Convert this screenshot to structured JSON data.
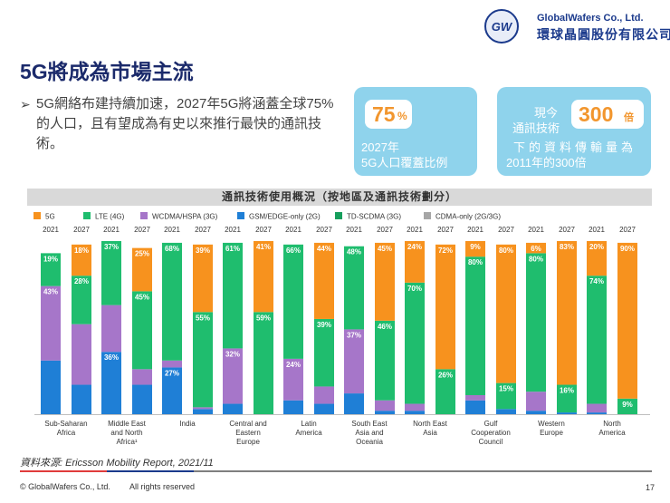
{
  "header": {
    "logo_text": "GW",
    "company_en": "GlobalWafers Co., Ltd.",
    "company_zh": "環球晶圓股份有限公司"
  },
  "title": "5G將成為市場主流",
  "bullet": {
    "marker": "➢",
    "text": "5G網絡布建持續加速，2027年5G將涵蓋全球75%的人口，且有望成為有史以來推行最快的通訊技術。"
  },
  "card1": {
    "value": "75",
    "unit": "%",
    "caption_line1": "2027年",
    "caption_line2": "5G人口覆蓋比例"
  },
  "card2": {
    "label_line1": "現今",
    "label_line2": "通訊技術",
    "value": "300",
    "unit": "倍",
    "caption_line1": "下的資料傳輸量為",
    "caption_line2": "2011年的300倍"
  },
  "chart_header": "通訊技術使用概況（按地區及通訊技術劃分）",
  "chart_data": {
    "type": "bar",
    "stacked": true,
    "ylim": [
      0,
      100
    ],
    "year_labels": [
      "2021",
      "2027"
    ],
    "legend": [
      {
        "name": "5G",
        "color": "#f7921e"
      },
      {
        "name": "LTE (4G)",
        "color": "#1fbd6e"
      },
      {
        "name": "WCDMA/HSPA (3G)",
        "color": "#a676c9"
      },
      {
        "name": "GSM/EDGE-only (2G)",
        "color": "#1f7fd6"
      },
      {
        "name": "TD-SCDMA (3G)",
        "color": "#169e5c"
      },
      {
        "name": "CDMA-only (2G/3G)",
        "color": "#a6a6a6"
      }
    ],
    "regions": [
      {
        "name": "Sub-Saharan Africa",
        "label_lines": [
          "Sub-Saharan",
          "Africa"
        ],
        "bars": [
          {
            "year": "2021",
            "segments": [
              {
                "tech": "GSM/EDGE-only (2G)",
                "value": 31,
                "label": ""
              },
              {
                "tech": "WCDMA/HSPA (3G)",
                "value": 43,
                "label": "43%"
              },
              {
                "tech": "LTE (4G)",
                "value": 19,
                "label": "19%"
              },
              {
                "tech": "5G",
                "value": 0,
                "label": ""
              }
            ]
          },
          {
            "year": "2027",
            "segments": [
              {
                "tech": "GSM/EDGE-only (2G)",
                "value": 17,
                "label": ""
              },
              {
                "tech": "WCDMA/HSPA (3G)",
                "value": 35,
                "label": ""
              },
              {
                "tech": "LTE (4G)",
                "value": 28,
                "label": "28%"
              },
              {
                "tech": "5G",
                "value": 18,
                "label": "18%"
              }
            ]
          }
        ]
      },
      {
        "name": "Middle East and North Africa",
        "label_lines": [
          "Middle East",
          "and North",
          "Africa¹"
        ],
        "bars": [
          {
            "year": "2021",
            "segments": [
              {
                "tech": "GSM/EDGE-only (2G)",
                "value": 36,
                "label": "36%"
              },
              {
                "tech": "WCDMA/HSPA (3G)",
                "value": 27,
                "label": ""
              },
              {
                "tech": "LTE (4G)",
                "value": 37,
                "label": "37%"
              },
              {
                "tech": "5G",
                "value": 0,
                "label": ""
              }
            ]
          },
          {
            "year": "2027",
            "segments": [
              {
                "tech": "GSM/EDGE-only (2G)",
                "value": 17,
                "label": ""
              },
              {
                "tech": "WCDMA/HSPA (3G)",
                "value": 9,
                "label": ""
              },
              {
                "tech": "LTE (4G)",
                "value": 45,
                "label": "45%"
              },
              {
                "tech": "5G",
                "value": 25,
                "label": "25%"
              }
            ]
          }
        ]
      },
      {
        "name": "India",
        "label_lines": [
          "India"
        ],
        "bars": [
          {
            "year": "2021",
            "segments": [
              {
                "tech": "GSM/EDGE-only (2G)",
                "value": 27,
                "label": "27%"
              },
              {
                "tech": "WCDMA/HSPA (3G)",
                "value": 4,
                "label": ""
              },
              {
                "tech": "LTE (4G)",
                "value": 68,
                "label": "68%"
              },
              {
                "tech": "5G",
                "value": 0,
                "label": ""
              }
            ]
          },
          {
            "year": "2027",
            "segments": [
              {
                "tech": "GSM/EDGE-only (2G)",
                "value": 3,
                "label": ""
              },
              {
                "tech": "WCDMA/HSPA (3G)",
                "value": 1,
                "label": ""
              },
              {
                "tech": "LTE (4G)",
                "value": 55,
                "label": "55%"
              },
              {
                "tech": "5G",
                "value": 39,
                "label": "39%"
              }
            ]
          }
        ]
      },
      {
        "name": "Central and Eastern Europe",
        "label_lines": [
          "Central and",
          "Eastern",
          "Europe"
        ],
        "bars": [
          {
            "year": "2021",
            "segments": [
              {
                "tech": "GSM/EDGE-only (2G)",
                "value": 6,
                "label": ""
              },
              {
                "tech": "WCDMA/HSPA (3G)",
                "value": 32,
                "label": "32%"
              },
              {
                "tech": "LTE (4G)",
                "value": 61,
                "label": "61%"
              },
              {
                "tech": "5G",
                "value": 0,
                "label": ""
              }
            ]
          },
          {
            "year": "2027",
            "segments": [
              {
                "tech": "LTE (4G)",
                "value": 59,
                "label": "59%"
              },
              {
                "tech": "5G",
                "value": 41,
                "label": "41%"
              }
            ]
          }
        ]
      },
      {
        "name": "Latin America",
        "label_lines": [
          "Latin",
          "America"
        ],
        "bars": [
          {
            "year": "2021",
            "segments": [
              {
                "tech": "GSM/EDGE-only (2G)",
                "value": 8,
                "label": ""
              },
              {
                "tech": "WCDMA/HSPA (3G)",
                "value": 24,
                "label": "24%"
              },
              {
                "tech": "LTE (4G)",
                "value": 66,
                "label": "66%"
              },
              {
                "tech": "5G",
                "value": 0,
                "label": ""
              }
            ]
          },
          {
            "year": "2027",
            "segments": [
              {
                "tech": "GSM/EDGE-only (2G)",
                "value": 6,
                "label": ""
              },
              {
                "tech": "WCDMA/HSPA (3G)",
                "value": 10,
                "label": ""
              },
              {
                "tech": "LTE (4G)",
                "value": 39,
                "label": "39%"
              },
              {
                "tech": "5G",
                "value": 44,
                "label": "44%"
              }
            ]
          }
        ]
      },
      {
        "name": "South East Asia and Oceania",
        "label_lines": [
          "South East",
          "Asia and",
          "Oceania"
        ],
        "bars": [
          {
            "year": "2021",
            "segments": [
              {
                "tech": "GSM/EDGE-only (2G)",
                "value": 12,
                "label": ""
              },
              {
                "tech": "WCDMA/HSPA (3G)",
                "value": 37,
                "label": "37%"
              },
              {
                "tech": "LTE (4G)",
                "value": 48,
                "label": "48%"
              },
              {
                "tech": "5G",
                "value": 0,
                "label": ""
              }
            ]
          },
          {
            "year": "2027",
            "segments": [
              {
                "tech": "GSM/EDGE-only (2G)",
                "value": 2,
                "label": ""
              },
              {
                "tech": "WCDMA/HSPA (3G)",
                "value": 6,
                "label": ""
              },
              {
                "tech": "LTE (4G)",
                "value": 46,
                "label": "46%"
              },
              {
                "tech": "5G",
                "value": 45,
                "label": "45%"
              }
            ]
          }
        ]
      },
      {
        "name": "North East Asia",
        "label_lines": [
          "North East",
          "Asia"
        ],
        "bars": [
          {
            "year": "2021",
            "segments": [
              {
                "tech": "GSM/EDGE-only (2G)",
                "value": 2,
                "label": ""
              },
              {
                "tech": "WCDMA/HSPA (3G)",
                "value": 4,
                "label": ""
              },
              {
                "tech": "LTE (4G)",
                "value": 70,
                "label": "70%"
              },
              {
                "tech": "5G",
                "value": 24,
                "label": "24%"
              }
            ]
          },
          {
            "year": "2027",
            "segments": [
              {
                "tech": "LTE (4G)",
                "value": 26,
                "label": "26%"
              },
              {
                "tech": "5G",
                "value": 72,
                "label": "72%"
              }
            ]
          }
        ]
      },
      {
        "name": "Gulf Cooperation Council",
        "label_lines": [
          "Gulf",
          "Cooperation",
          "Council"
        ],
        "bars": [
          {
            "year": "2021",
            "segments": [
              {
                "tech": "GSM/EDGE-only (2G)",
                "value": 8,
                "label": ""
              },
              {
                "tech": "WCDMA/HSPA (3G)",
                "value": 3,
                "label": ""
              },
              {
                "tech": "LTE (4G)",
                "value": 80,
                "label": "80%"
              },
              {
                "tech": "5G",
                "value": 9,
                "label": "9%"
              }
            ]
          },
          {
            "year": "2027",
            "segments": [
              {
                "tech": "GSM/EDGE-only (2G)",
                "value": 3,
                "label": ""
              },
              {
                "tech": "LTE (4G)",
                "value": 15,
                "label": "15%"
              },
              {
                "tech": "5G",
                "value": 80,
                "label": "80%"
              }
            ]
          }
        ]
      },
      {
        "name": "Western Europe",
        "label_lines": [
          "Western",
          "Europe"
        ],
        "bars": [
          {
            "year": "2021",
            "segments": [
              {
                "tech": "GSM/EDGE-only (2G)",
                "value": 2,
                "label": ""
              },
              {
                "tech": "WCDMA/HSPA (3G)",
                "value": 11,
                "label": ""
              },
              {
                "tech": "LTE (4G)",
                "value": 80,
                "label": "80%"
              },
              {
                "tech": "5G",
                "value": 6,
                "label": "6%"
              }
            ]
          },
          {
            "year": "2027",
            "segments": [
              {
                "tech": "GSM/EDGE-only (2G)",
                "value": 1,
                "label": ""
              },
              {
                "tech": "LTE (4G)",
                "value": 16,
                "label": "16%"
              },
              {
                "tech": "5G",
                "value": 83,
                "label": "83%"
              }
            ]
          }
        ]
      },
      {
        "name": "North America",
        "label_lines": [
          "North",
          "America"
        ],
        "bars": [
          {
            "year": "2021",
            "segments": [
              {
                "tech": "GSM/EDGE-only (2G)",
                "value": 1,
                "label": ""
              },
              {
                "tech": "WCDMA/HSPA (3G)",
                "value": 5,
                "label": ""
              },
              {
                "tech": "LTE (4G)",
                "value": 74,
                "label": "74%"
              },
              {
                "tech": "5G",
                "value": 20,
                "label": "20%"
              }
            ]
          },
          {
            "year": "2027",
            "segments": [
              {
                "tech": "LTE (4G)",
                "value": 9,
                "label": "9%"
              },
              {
                "tech": "5G",
                "value": 90,
                "label": "90%"
              }
            ]
          }
        ]
      }
    ]
  },
  "source": "資料來源: Ericsson Mobility Report, 2021/11",
  "footer": {
    "copyright": "© GlobalWafers Co., Ltd.",
    "rights": "All rights reserved",
    "page": "17"
  },
  "colors": {
    "title": "#1b2a6b",
    "card": "#8fd3ec",
    "accent_orange": "#f2962e",
    "line1": "#e03c3c",
    "line2": "#1b3a8c",
    "line3": "#7f7f7f"
  }
}
